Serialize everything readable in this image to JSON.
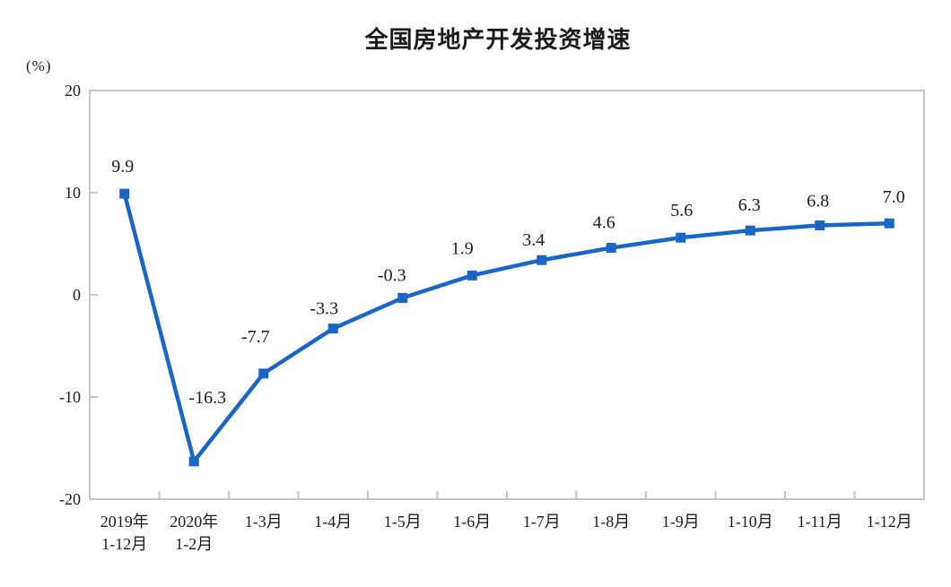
{
  "chart_data": {
    "type": "line",
    "title": "全国房地产开发投资增速",
    "unit_label": "(%)",
    "categories": [
      "2019年\n1-12月",
      "2020年\n1-2月",
      "1-3月",
      "1-4月",
      "1-5月",
      "1-6月",
      "1-7月",
      "1-8月",
      "1-9月",
      "1-10月",
      "1-11月",
      "1-12月"
    ],
    "values": [
      9.9,
      -16.3,
      -7.7,
      -3.3,
      -0.3,
      1.9,
      3.4,
      4.6,
      5.6,
      6.3,
      6.8,
      7.0
    ],
    "data_labels": [
      "9.9",
      "-16.3",
      "-7.7",
      "-3.3",
      "-0.3",
      "1.9",
      "3.4",
      "4.6",
      "5.6",
      "6.3",
      "6.8",
      "7.0"
    ],
    "ylim": [
      -20,
      20
    ],
    "yticks": [
      20,
      10,
      0,
      -10,
      -20
    ],
    "grid": false,
    "legend": false,
    "marker": "square",
    "line_color": "#1a66c6",
    "axis_color": "#c6c6c6",
    "text_color": "#1c1c1c"
  }
}
